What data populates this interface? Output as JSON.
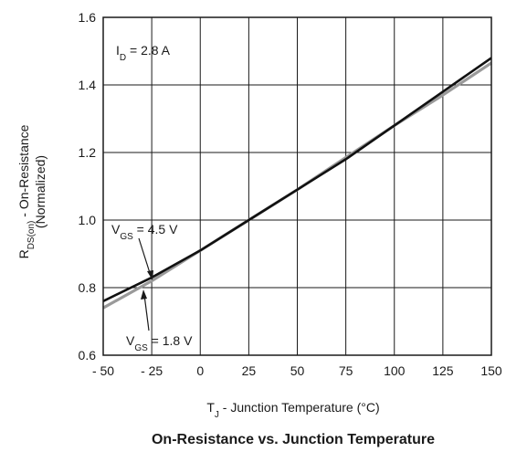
{
  "chart_data": {
    "type": "line",
    "title": "On-Resistance vs. Junction Temperature",
    "xlabel": {
      "main": "T",
      "sub": "J",
      "rest": " - Junction Temperature (°C)"
    },
    "ylabel": {
      "line1": {
        "main": "R",
        "sub": "DS(on)",
        "rest": " - On-Resistance"
      },
      "line2": "(Normalized)"
    },
    "xlim": [
      -50,
      150
    ],
    "ylim": [
      0.6,
      1.6
    ],
    "xticks": [
      -50,
      -25,
      0,
      25,
      50,
      75,
      100,
      125,
      150
    ],
    "xtick_labels": [
      "- 50",
      "- 25",
      "0",
      "25",
      "50",
      "75",
      "100",
      "125",
      "150"
    ],
    "yticks": [
      0.6,
      0.8,
      1.0,
      1.2,
      1.4,
      1.6
    ],
    "ytick_labels": [
      "0.6",
      "0.8",
      "1.0",
      "1.2",
      "1.4",
      "1.6"
    ],
    "grid": true,
    "series": [
      {
        "name": "VGS = 4.5 V",
        "color": "#111111",
        "x": [
          -50,
          -25,
          0,
          25,
          50,
          75,
          100,
          125,
          150
        ],
        "y": [
          0.76,
          0.83,
          0.91,
          1.0,
          1.09,
          1.18,
          1.28,
          1.38,
          1.48
        ]
      },
      {
        "name": "VGS = 1.8 V",
        "color": "#9a9a9a",
        "x": [
          -50,
          -25,
          0,
          25,
          50,
          75,
          100,
          125,
          150
        ],
        "y": [
          0.74,
          0.82,
          0.91,
          1.0,
          1.09,
          1.185,
          1.28,
          1.37,
          1.465
        ]
      }
    ],
    "annotations": [
      {
        "label": {
          "main": "I",
          "sub": "D",
          "rest": " = 2.8 A"
        }
      },
      {
        "label": {
          "main": "V",
          "sub": "GS",
          "rest": " = 4.5 V"
        }
      },
      {
        "label": {
          "main": "V",
          "sub": "GS",
          "rest": " = 1.8 V"
        }
      }
    ]
  }
}
